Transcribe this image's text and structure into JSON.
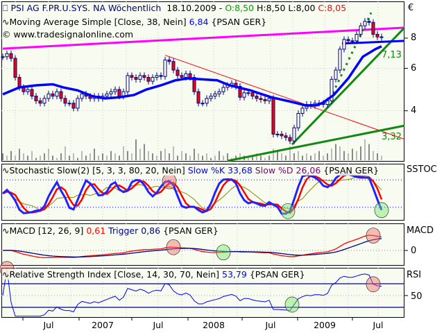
{
  "header": {
    "symbol": "PSI AG F.PR.U.SYS. NA Wöchentlich",
    "date": "18.10.2009 -",
    "open": "O:8,50",
    "high": "H:8,50",
    "low": "L:8,00",
    "close": "C:8,05",
    "ma_legend": "Moving Average Simple [Close, 38, Nein]",
    "ma_value": "6,84",
    "ma_symbol": "{PSAN GER}",
    "copyright": "© www.tradesignalonline.com"
  },
  "colors": {
    "panel_bg": "#f8fbef",
    "candle_border": "#000080",
    "candle_down": "#ff0000",
    "ma": "#0000ff",
    "trend_magenta": "#ff00ff",
    "trend_red": "#ff0000",
    "trend_green": "#118811",
    "volume": "#888888"
  },
  "axis": {
    "currency": "€",
    "price_ticks": [
      "8",
      "6",
      "4"
    ],
    "x_labels": [
      "Jul",
      "2007",
      "Jul",
      "2008",
      "Jul",
      "2009",
      "Jul"
    ],
    "trend_label_upper": "7,13",
    "trend_label_lower": "3,32"
  },
  "stochastic": {
    "legend": "Stochastic Slow(2) [5, 3, 3, 80, 20, Nein]",
    "k_label": "Slow %K 33,68",
    "d_label": "Slow %D 26,06",
    "symbol": "{PSAN GER}",
    "axis_label": "SSTOC"
  },
  "macd": {
    "legend": "MACD [12, 26, 9]",
    "value": "0,61",
    "trigger_label": "Trigger 0,86",
    "symbol": "{PSAN GER}",
    "axis_label": "MACD",
    "zero_tick": "0"
  },
  "rsi": {
    "legend": "Relative Strength Index [Close, 14, 30, 70, Nein]",
    "value": "53,79",
    "symbol": "{PSAN GER}",
    "axis_label": "RSI",
    "mid_tick": "50"
  },
  "chart_data": {
    "type": "candlestick",
    "title": "PSI AG F.PR.U.SYS. NA Wöchentlich",
    "period": "weekly, sampled every 2 weeks",
    "price_scale": "log",
    "ylim": [
      2.4,
      10.5
    ],
    "closes": [
      6.7,
      6.9,
      6.6,
      5.5,
      5.0,
      4.8,
      4.9,
      4.6,
      4.4,
      4.3,
      4.5,
      4.7,
      4.6,
      4.8,
      4.5,
      4.3,
      4.3,
      4.1,
      4.5,
      4.7,
      4.6,
      4.5,
      4.6,
      4.5,
      4.6,
      4.7,
      4.8,
      4.9,
      4.6,
      4.8,
      5.6,
      5.5,
      5.4,
      5.6,
      5.5,
      5.3,
      5.5,
      5.6,
      5.55,
      6.5,
      6.4,
      5.9,
      5.6,
      5.5,
      5.7,
      5.5,
      4.8,
      4.3,
      4.3,
      4.5,
      4.6,
      4.7,
      4.8,
      5.0,
      5.1,
      5.2,
      5.05,
      4.55,
      4.75,
      4.75,
      4.6,
      4.5,
      4.45,
      4.4,
      4.5,
      3.2,
      3.2,
      3.15,
      3.1,
      3.0,
      3.4,
      3.9,
      4.1,
      4.25,
      4.2,
      4.3,
      4.3,
      4.25,
      4.4,
      5.4,
      5.9,
      7.2,
      7.9,
      7.8,
      7.8,
      8.3,
      9.0,
      9.4,
      9.3,
      8.3,
      8.1,
      8.05
    ],
    "volume": [
      3,
      2,
      4,
      2,
      5,
      3,
      2,
      4,
      1,
      2,
      3,
      5,
      2,
      1,
      3,
      6,
      2,
      3,
      1,
      4,
      2,
      3,
      5,
      2,
      3,
      2,
      4,
      3,
      2,
      6,
      4,
      3,
      9,
      5,
      7,
      4,
      3,
      2,
      4,
      5,
      3,
      6,
      2,
      4,
      3,
      2,
      5,
      3,
      2,
      3,
      1,
      2,
      4,
      2,
      3,
      1,
      2,
      3,
      2,
      1,
      2,
      3,
      2,
      1,
      2,
      5,
      4,
      3,
      2,
      6,
      3,
      4,
      2,
      3,
      2,
      3,
      4,
      2,
      3,
      5,
      7,
      6,
      4,
      3,
      5,
      4,
      6,
      9,
      7,
      4,
      3,
      2
    ],
    "moving_average": {
      "period": 38,
      "points_week_value": [
        [
          0,
          4.68
        ],
        [
          8,
          5.0
        ],
        [
          16,
          5.1
        ],
        [
          24,
          5.15
        ],
        [
          29,
          5.0
        ],
        [
          36,
          4.86
        ],
        [
          43,
          4.6
        ],
        [
          49,
          4.5
        ],
        [
          56,
          4.55
        ],
        [
          63,
          4.65
        ],
        [
          69,
          4.9
        ],
        [
          76,
          5.1
        ],
        [
          83,
          5.35
        ],
        [
          89,
          5.45
        ],
        [
          96,
          5.4
        ],
        [
          103,
          5.35
        ],
        [
          109,
          5.1
        ],
        [
          119,
          4.86
        ],
        [
          129,
          4.55
        ],
        [
          139,
          4.35
        ],
        [
          146,
          4.2
        ],
        [
          151,
          4.22
        ],
        [
          154,
          4.33
        ],
        [
          159,
          4.65
        ],
        [
          166,
          5.45
        ],
        [
          173,
          6.7
        ],
        [
          179,
          7.2
        ],
        [
          182,
          7.4
        ]
      ]
    },
    "trendlines": [
      {
        "name": "magenta-resistance",
        "from": [
          0,
          7.24
        ],
        "to": [
          193,
          8.84
        ],
        "color": "#ff00ff"
      },
      {
        "name": "red-downtrend",
        "from": [
          78,
          6.8
        ],
        "to": [
          193,
          3.05
        ],
        "color": "#ff0000"
      },
      {
        "name": "green-long-support",
        "from": [
          108,
          2.48
        ],
        "to": [
          193,
          3.47
        ],
        "color": "#118811"
      },
      {
        "name": "green-steep-support",
        "from": [
          139,
          2.9
        ],
        "to": [
          193,
          8.84
        ],
        "color": "#118811"
      },
      {
        "name": "green-dotted",
        "from": [
          156,
          4.25
        ],
        "to": [
          177,
          10.2
        ],
        "color": "#118811",
        "dotted": true
      },
      {
        "name": "blue-horizontal",
        "from": [
          163,
          7.6
        ],
        "to": [
          193,
          7.8
        ],
        "color": "#0000ff"
      }
    ],
    "signal_markers": [
      {
        "panel": "stochastic",
        "week": 80,
        "type": "sell"
      },
      {
        "panel": "stochastic",
        "week": 137,
        "type": "buy"
      },
      {
        "panel": "stochastic",
        "week": 182,
        "type": "buy"
      },
      {
        "panel": "macd",
        "week": 82,
        "type": "sell"
      },
      {
        "panel": "macd",
        "week": 106,
        "type": "buy"
      },
      {
        "panel": "macd",
        "week": 178,
        "type": "sell"
      },
      {
        "panel": "rsi",
        "week": 2,
        "type": "sell"
      },
      {
        "panel": "rsi",
        "week": 139,
        "type": "buy"
      },
      {
        "panel": "rsi",
        "week": 178,
        "type": "sell"
      }
    ]
  }
}
